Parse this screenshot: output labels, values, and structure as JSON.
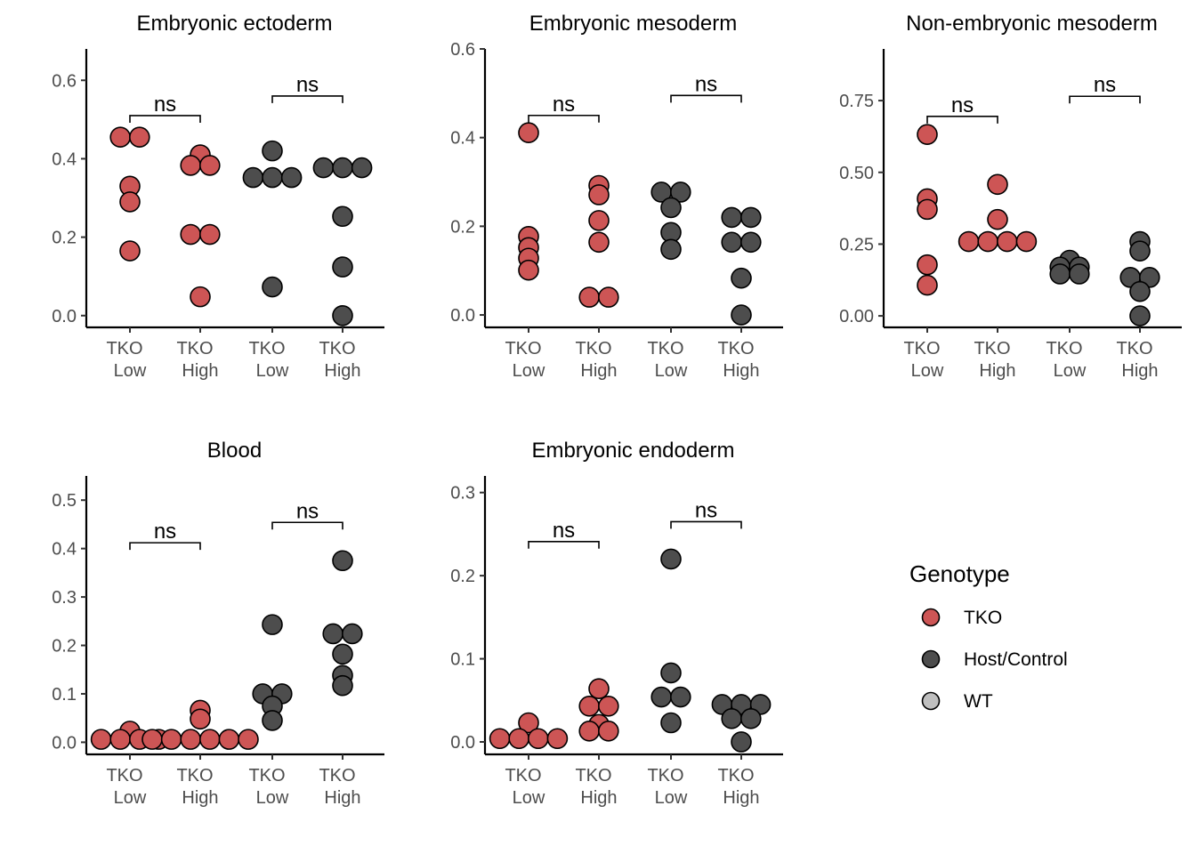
{
  "chart_data": {
    "type": "scatter",
    "groups": [
      "TKO\nLow",
      "TKO\nHigh",
      "TKO\nLow",
      "TKO\nHigh"
    ],
    "group_genotypes": [
      "TKO",
      "TKO",
      "Host/Control",
      "Host/Control"
    ],
    "significance_label": "ns",
    "comparisons": [
      [
        1,
        2
      ],
      [
        3,
        4
      ]
    ],
    "panels": [
      {
        "title": "Embryonic ectoderm",
        "ylim": [
          -0.03,
          0.68
        ],
        "yticks": [
          0.0,
          0.2,
          0.4,
          0.6
        ],
        "tick_labels": [
          "0.0",
          "0.2",
          "0.4",
          "0.6"
        ],
        "bracket_y": [
          0.51,
          0.56
        ],
        "values": [
          [
            0.455,
            0.455,
            0.33,
            0.29,
            0.165
          ],
          [
            0.41,
            0.383,
            0.383,
            0.207,
            0.207,
            0.048
          ],
          [
            0.42,
            0.352,
            0.352,
            0.352,
            0.073
          ],
          [
            0.377,
            0.377,
            0.377,
            0.253,
            0.124,
            0.0
          ]
        ]
      },
      {
        "title": "Embryonic mesoderm",
        "ylim": [
          -0.028,
          0.6
        ],
        "yticks": [
          0.0,
          0.2,
          0.4,
          0.6
        ],
        "tick_labels": [
          "0.0",
          "0.2",
          "0.4",
          "0.6"
        ],
        "bracket_y": [
          0.45,
          0.495
        ],
        "values": [
          [
            0.411,
            0.177,
            0.152,
            0.128,
            0.101
          ],
          [
            0.292,
            0.271,
            0.213,
            0.164,
            0.04,
            0.04
          ],
          [
            0.277,
            0.277,
            0.242,
            0.186,
            0.148
          ],
          [
            0.22,
            0.22,
            0.164,
            0.164,
            0.083,
            0.0
          ]
        ]
      },
      {
        "title": "Non-embryonic mesoderm",
        "ylim": [
          -0.04,
          0.93
        ],
        "yticks": [
          0.0,
          0.25,
          0.5,
          0.75
        ],
        "tick_labels": [
          "0.00",
          "0.25",
          "0.50",
          "0.75"
        ],
        "bracket_y": [
          0.695,
          0.765
        ],
        "values": [
          [
            0.632,
            0.408,
            0.371,
            0.178,
            0.107
          ],
          [
            0.458,
            0.336,
            0.259,
            0.259,
            0.259,
            0.259
          ],
          [
            0.194,
            0.17,
            0.17,
            0.146,
            0.146
          ],
          [
            0.259,
            0.226,
            0.134,
            0.134,
            0.085,
            0.0
          ]
        ]
      },
      {
        "title": "Blood",
        "ylim": [
          -0.025,
          0.55
        ],
        "yticks": [
          0.0,
          0.1,
          0.2,
          0.3,
          0.4,
          0.5
        ],
        "tick_labels": [
          "0.0",
          "0.1",
          "0.2",
          "0.3",
          "0.4",
          "0.5"
        ],
        "bracket_y": [
          0.412,
          0.454
        ],
        "values": [
          [
            0.023,
            0.006,
            0.006,
            0.006,
            0.006
          ],
          [
            0.066,
            0.048,
            0.006,
            0.006,
            0.006,
            0.006,
            0.006,
            0.006
          ],
          [
            0.243,
            0.1,
            0.1,
            0.075,
            0.045
          ],
          [
            0.375,
            0.224,
            0.224,
            0.182,
            0.138,
            0.117
          ]
        ]
      },
      {
        "title": "Embryonic endoderm",
        "ylim": [
          -0.015,
          0.32
        ],
        "yticks": [
          0.0,
          0.1,
          0.2,
          0.3
        ],
        "tick_labels": [
          "0.0",
          "0.1",
          "0.2",
          "0.3"
        ],
        "bracket_y": [
          0.241,
          0.265
        ],
        "values": [
          [
            0.023,
            0.004,
            0.004,
            0.004,
            0.004
          ],
          [
            0.064,
            0.043,
            0.043,
            0.021,
            0.013,
            0.013
          ],
          [
            0.22,
            0.083,
            0.054,
            0.054,
            0.023
          ],
          [
            0.045,
            0.045,
            0.045,
            0.028,
            0.028,
            0.0
          ]
        ]
      }
    ],
    "legend": {
      "title": "Genotype",
      "position": "right",
      "items": [
        {
          "label": "TKO",
          "color": "#cd5555"
        },
        {
          "label": "Host/Control",
          "color": "#4d4d4d"
        },
        {
          "label": "WT",
          "color": "#bfbfbf"
        }
      ]
    }
  }
}
